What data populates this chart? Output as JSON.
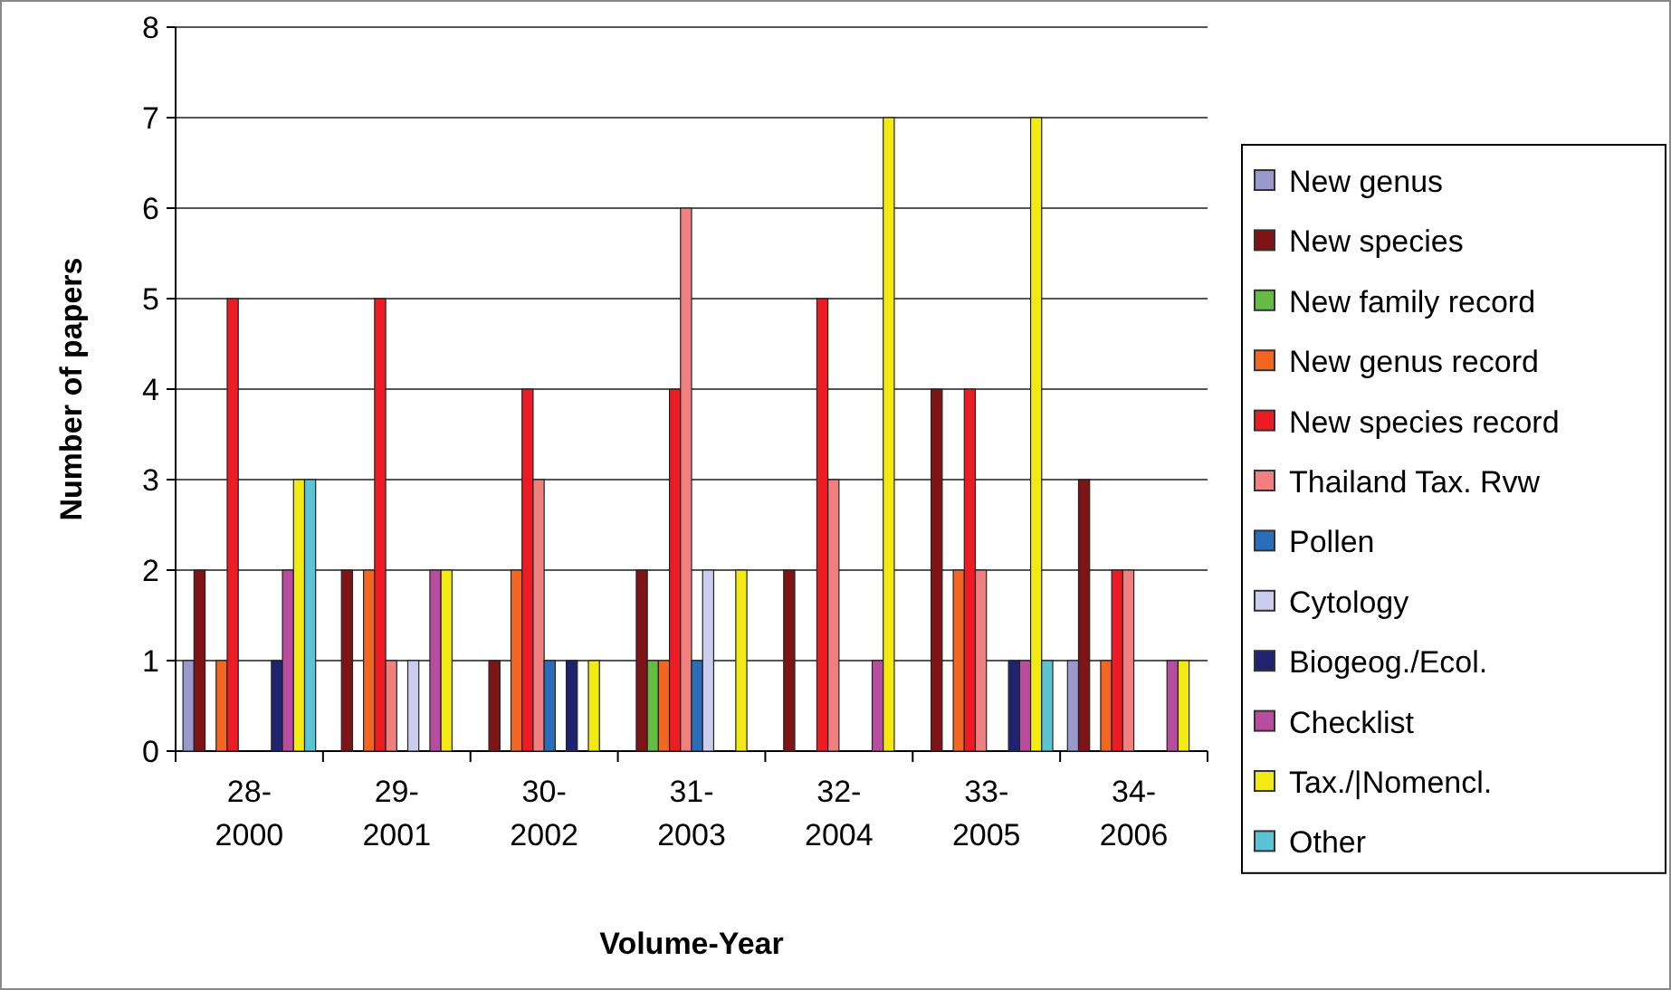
{
  "chart_data": {
    "type": "bar",
    "xlabel": "Volume-Year",
    "ylabel": "Number of papers",
    "categories": [
      "28-\n2000",
      "29-\n2001",
      "30-\n2002",
      "31-\n2003",
      "32-\n2004",
      "33-\n2005",
      "34-\n2006"
    ],
    "series": [
      {
        "name": "New genus",
        "color": "#9999cc",
        "values": [
          1,
          0,
          0,
          0,
          0,
          0,
          1
        ]
      },
      {
        "name": "New species",
        "color": "#7f1416",
        "values": [
          2,
          2,
          1,
          2,
          2,
          4,
          3
        ]
      },
      {
        "name": "New family record",
        "color": "#66bb44",
        "values": [
          0,
          0,
          0,
          1,
          0,
          0,
          0
        ]
      },
      {
        "name": "New genus record",
        "color": "#f26522",
        "values": [
          1,
          2,
          2,
          1,
          0,
          2,
          1
        ]
      },
      {
        "name": "New species record",
        "color": "#ed1c24",
        "values": [
          5,
          5,
          4,
          4,
          5,
          4,
          2
        ]
      },
      {
        "name": "Thailand Tax. Rvw",
        "color": "#f08080",
        "values": [
          0,
          1,
          3,
          6,
          3,
          2,
          2
        ]
      },
      {
        "name": "Pollen",
        "color": "#2a6ebb",
        "values": [
          0,
          0,
          1,
          1,
          0,
          0,
          0
        ]
      },
      {
        "name": "Cytology",
        "color": "#ccccee",
        "values": [
          0,
          1,
          0,
          2,
          0,
          0,
          0
        ]
      },
      {
        "name": "Biogeog./Ecol.",
        "color": "#1f2370",
        "values": [
          1,
          0,
          1,
          0,
          0,
          1,
          0
        ]
      },
      {
        "name": "Checklist",
        "color": "#b84c9e",
        "values": [
          2,
          2,
          0,
          0,
          1,
          1,
          1
        ]
      },
      {
        "name": "Tax./|Nomencl.",
        "color": "#f2ea12",
        "values": [
          3,
          2,
          1,
          2,
          7,
          7,
          1
        ]
      },
      {
        "name": "Other",
        "color": "#5bc4d4",
        "values": [
          3,
          0,
          0,
          0,
          0,
          1,
          0
        ]
      }
    ],
    "ylim": [
      0,
      8
    ],
    "yticks": [
      0,
      1,
      2,
      3,
      4,
      5,
      6,
      7,
      8
    ],
    "grid": "y",
    "legend": "right"
  }
}
